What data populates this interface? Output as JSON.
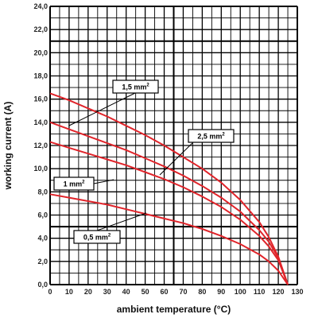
{
  "chart_data": {
    "type": "line",
    "xlabel": "ambient temperature (°C)",
    "ylabel": "working current (A)",
    "xlim": [
      0,
      130
    ],
    "ylim": [
      0,
      24
    ],
    "grid": true,
    "x_ticks": [
      "0",
      "10",
      "20",
      "30",
      "40",
      "50",
      "60",
      "70",
      "80",
      "90",
      "100",
      "110",
      "120",
      "130"
    ],
    "y_ticks": [
      "0,0",
      "2,0",
      "4,0",
      "6,0",
      "8,0",
      "10,0",
      "12,0",
      "14,0",
      "16,0",
      "18,0",
      "20,0",
      "22,0",
      "24,0"
    ],
    "line_color": "#e0242a",
    "series": [
      {
        "name": "1,5 mm",
        "name_sup": "2",
        "points": [
          [
            0,
            16.5
          ],
          [
            10,
            15.9
          ],
          [
            20,
            15.2
          ],
          [
            30,
            14.5
          ],
          [
            40,
            13.7
          ],
          [
            50,
            12.9
          ],
          [
            60,
            12.0
          ],
          [
            70,
            11.0
          ],
          [
            80,
            10.0
          ],
          [
            90,
            8.8
          ],
          [
            100,
            7.3
          ],
          [
            110,
            5.4
          ],
          [
            115,
            4.1
          ],
          [
            120,
            2.4
          ],
          [
            125,
            0
          ]
        ]
      },
      {
        "name": "2,5 mm",
        "name_sup": "2",
        "points": [
          [
            0,
            14.0
          ],
          [
            10,
            13.4
          ],
          [
            20,
            12.8
          ],
          [
            30,
            12.2
          ],
          [
            40,
            11.6
          ],
          [
            50,
            10.9
          ],
          [
            60,
            10.2
          ],
          [
            70,
            9.4
          ],
          [
            80,
            8.5
          ],
          [
            90,
            7.5
          ],
          [
            100,
            6.3
          ],
          [
            110,
            4.7
          ],
          [
            115,
            3.7
          ],
          [
            120,
            2.3
          ],
          [
            125,
            0
          ]
        ]
      },
      {
        "name": "1 mm",
        "name_sup": "2",
        "points": [
          [
            0,
            12.3
          ],
          [
            10,
            11.8
          ],
          [
            20,
            11.3
          ],
          [
            30,
            10.8
          ],
          [
            40,
            10.3
          ],
          [
            50,
            9.7
          ],
          [
            60,
            9.1
          ],
          [
            70,
            8.4
          ],
          [
            80,
            7.6
          ],
          [
            90,
            6.7
          ],
          [
            100,
            5.6
          ],
          [
            110,
            4.2
          ],
          [
            115,
            3.3
          ],
          [
            120,
            2.1
          ],
          [
            125,
            0
          ]
        ]
      },
      {
        "name": "0,5 mm",
        "name_sup": "2",
        "points": [
          [
            0,
            7.8
          ],
          [
            10,
            7.5
          ],
          [
            20,
            7.2
          ],
          [
            30,
            6.9
          ],
          [
            40,
            6.5
          ],
          [
            50,
            6.1
          ],
          [
            60,
            5.7
          ],
          [
            70,
            5.3
          ],
          [
            80,
            4.8
          ],
          [
            90,
            4.2
          ],
          [
            100,
            3.5
          ],
          [
            110,
            2.6
          ],
          [
            115,
            2.0
          ],
          [
            120,
            1.2
          ],
          [
            125,
            0
          ]
        ]
      }
    ]
  }
}
